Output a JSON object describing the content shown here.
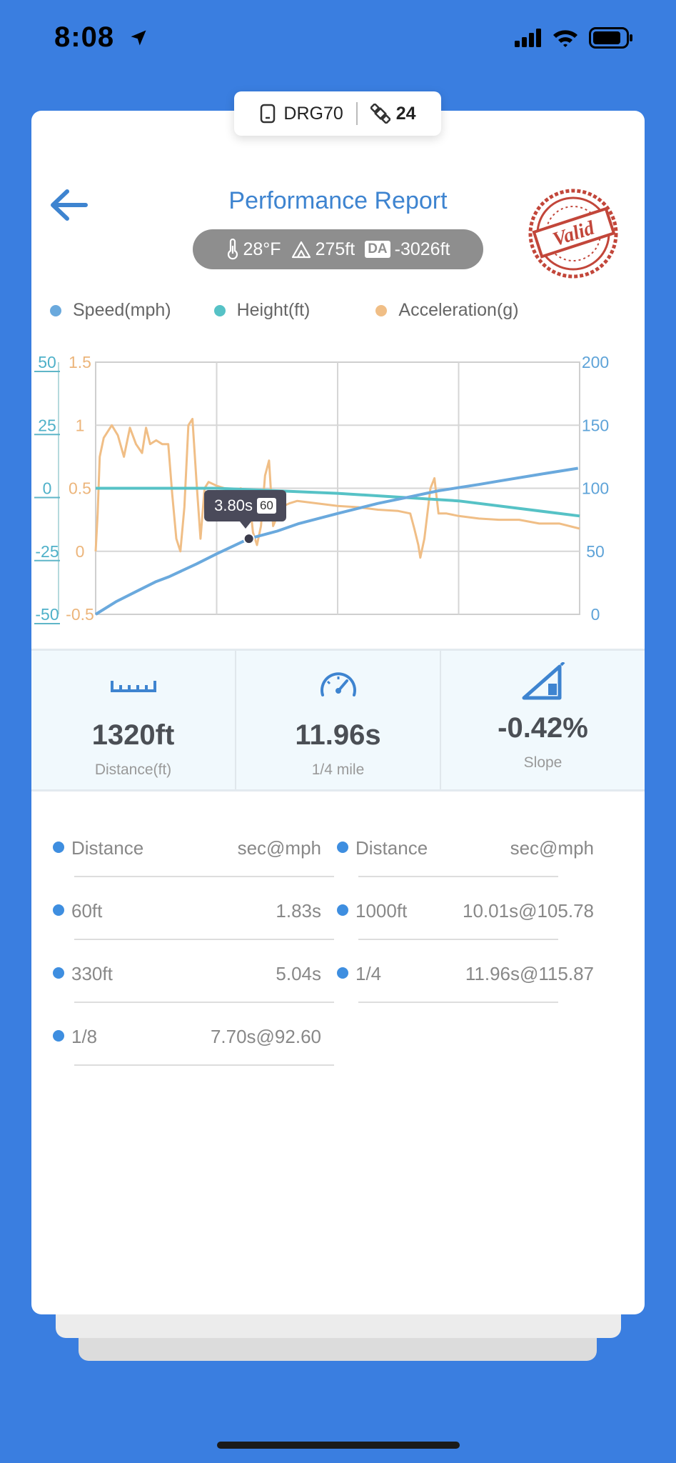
{
  "status_bar": {
    "time": "8:08"
  },
  "device": {
    "name": "DRG70",
    "satellites": "24"
  },
  "header": {
    "title": "Performance Report",
    "stamp_text": "Valid"
  },
  "conditions": {
    "temperature": "28°F",
    "altitude": "275ft",
    "da_label": "DA",
    "density_altitude": "-3026ft"
  },
  "legend": [
    {
      "label": "Speed(mph)",
      "color": "#6aa9dd"
    },
    {
      "label": "Height(ft)",
      "color": "#56c2c6"
    },
    {
      "label": "Acceleration(g)",
      "color": "#f0be86"
    }
  ],
  "chart_data": {
    "type": "line",
    "x_range_s": [
      0,
      12
    ],
    "y_axes": {
      "height": {
        "ticks": [
          "50",
          "25",
          "0",
          "-25",
          "-50"
        ],
        "range": [
          -50,
          50
        ]
      },
      "acceleration": {
        "ticks": [
          "1.5",
          "1",
          "0.5",
          "0",
          "-0.5"
        ],
        "range": [
          -0.5,
          1.5
        ]
      },
      "speed": {
        "ticks": [
          "200",
          "150",
          "100",
          "50",
          "0"
        ],
        "range": [
          0,
          200
        ]
      }
    },
    "series": [
      {
        "name": "Speed(mph)",
        "color": "#6aa9dd",
        "points": [
          [
            0,
            0
          ],
          [
            0.5,
            10
          ],
          [
            1,
            18
          ],
          [
            1.5,
            26
          ],
          [
            1.83,
            30
          ],
          [
            2.5,
            40
          ],
          [
            3,
            48
          ],
          [
            3.8,
            60
          ],
          [
            4.5,
            66
          ],
          [
            5.04,
            72
          ],
          [
            6,
            80
          ],
          [
            7,
            88
          ],
          [
            7.7,
            92.6
          ],
          [
            8.5,
            98
          ],
          [
            9.5,
            103
          ],
          [
            10.01,
            105.78
          ],
          [
            11,
            111
          ],
          [
            11.96,
            115.87
          ]
        ]
      },
      {
        "name": "Height(ft)",
        "color": "#56c2c6",
        "points": [
          [
            0,
            0
          ],
          [
            3,
            0
          ],
          [
            6,
            -2
          ],
          [
            9,
            -5
          ],
          [
            12,
            -11
          ]
        ]
      },
      {
        "name": "Acceleration(g)",
        "color": "#f0be86",
        "points": [
          [
            0,
            0
          ],
          [
            0.05,
            0.3
          ],
          [
            0.1,
            0.75
          ],
          [
            0.2,
            0.9
          ],
          [
            0.4,
            1.0
          ],
          [
            0.55,
            0.92
          ],
          [
            0.7,
            0.75
          ],
          [
            0.85,
            0.98
          ],
          [
            1.0,
            0.85
          ],
          [
            1.15,
            0.78
          ],
          [
            1.25,
            0.98
          ],
          [
            1.35,
            0.85
          ],
          [
            1.5,
            0.88
          ],
          [
            1.65,
            0.85
          ],
          [
            1.8,
            0.85
          ],
          [
            1.9,
            0.45
          ],
          [
            2.0,
            0.1
          ],
          [
            2.1,
            0.0
          ],
          [
            2.2,
            0.35
          ],
          [
            2.3,
            1.0
          ],
          [
            2.4,
            1.05
          ],
          [
            2.5,
            0.55
          ],
          [
            2.6,
            0.1
          ],
          [
            2.7,
            0.5
          ],
          [
            2.8,
            0.55
          ],
          [
            3.0,
            0.52
          ],
          [
            3.2,
            0.5
          ],
          [
            3.4,
            0.48
          ],
          [
            3.6,
            0.5
          ],
          [
            3.8,
            0.45
          ],
          [
            3.9,
            0.15
          ],
          [
            4.0,
            0.05
          ],
          [
            4.1,
            0.2
          ],
          [
            4.2,
            0.6
          ],
          [
            4.3,
            0.72
          ],
          [
            4.4,
            0.2
          ],
          [
            4.6,
            0.35
          ],
          [
            4.8,
            0.38
          ],
          [
            5.0,
            0.4
          ],
          [
            5.5,
            0.38
          ],
          [
            6.0,
            0.36
          ],
          [
            6.5,
            0.35
          ],
          [
            7.0,
            0.33
          ],
          [
            7.5,
            0.32
          ],
          [
            7.8,
            0.3
          ],
          [
            7.9,
            0.18
          ],
          [
            8.0,
            0.05
          ],
          [
            8.05,
            -0.05
          ],
          [
            8.15,
            0.1
          ],
          [
            8.3,
            0.5
          ],
          [
            8.4,
            0.58
          ],
          [
            8.5,
            0.3
          ],
          [
            8.7,
            0.3
          ],
          [
            9.0,
            0.28
          ],
          [
            9.5,
            0.26
          ],
          [
            10.0,
            0.25
          ],
          [
            10.5,
            0.25
          ],
          [
            11.0,
            0.22
          ],
          [
            11.5,
            0.22
          ],
          [
            12,
            0.18
          ]
        ]
      }
    ],
    "marker": {
      "time": "3.80s",
      "speed": "60",
      "x": 3.8,
      "y": 60
    }
  },
  "stats": [
    {
      "value": "1320ft",
      "label": "Distance(ft)",
      "icon": "ruler-icon"
    },
    {
      "value": "11.96s",
      "label": "1/4 mile",
      "icon": "speedometer-icon"
    },
    {
      "value": "-0.42%",
      "label": "Slope",
      "icon": "slope-icon"
    }
  ],
  "splits": {
    "header": {
      "name": "Distance",
      "time": "sec@mph"
    },
    "left": [
      {
        "name": "60ft",
        "time": "1.83s"
      },
      {
        "name": "330ft",
        "time": "5.04s"
      },
      {
        "name": "1/8",
        "time": "7.70s@92.60"
      }
    ],
    "right": [
      {
        "name": "1000ft",
        "time": "10.01s@105.78"
      },
      {
        "name": "1/4",
        "time": "11.96s@115.87"
      }
    ]
  }
}
